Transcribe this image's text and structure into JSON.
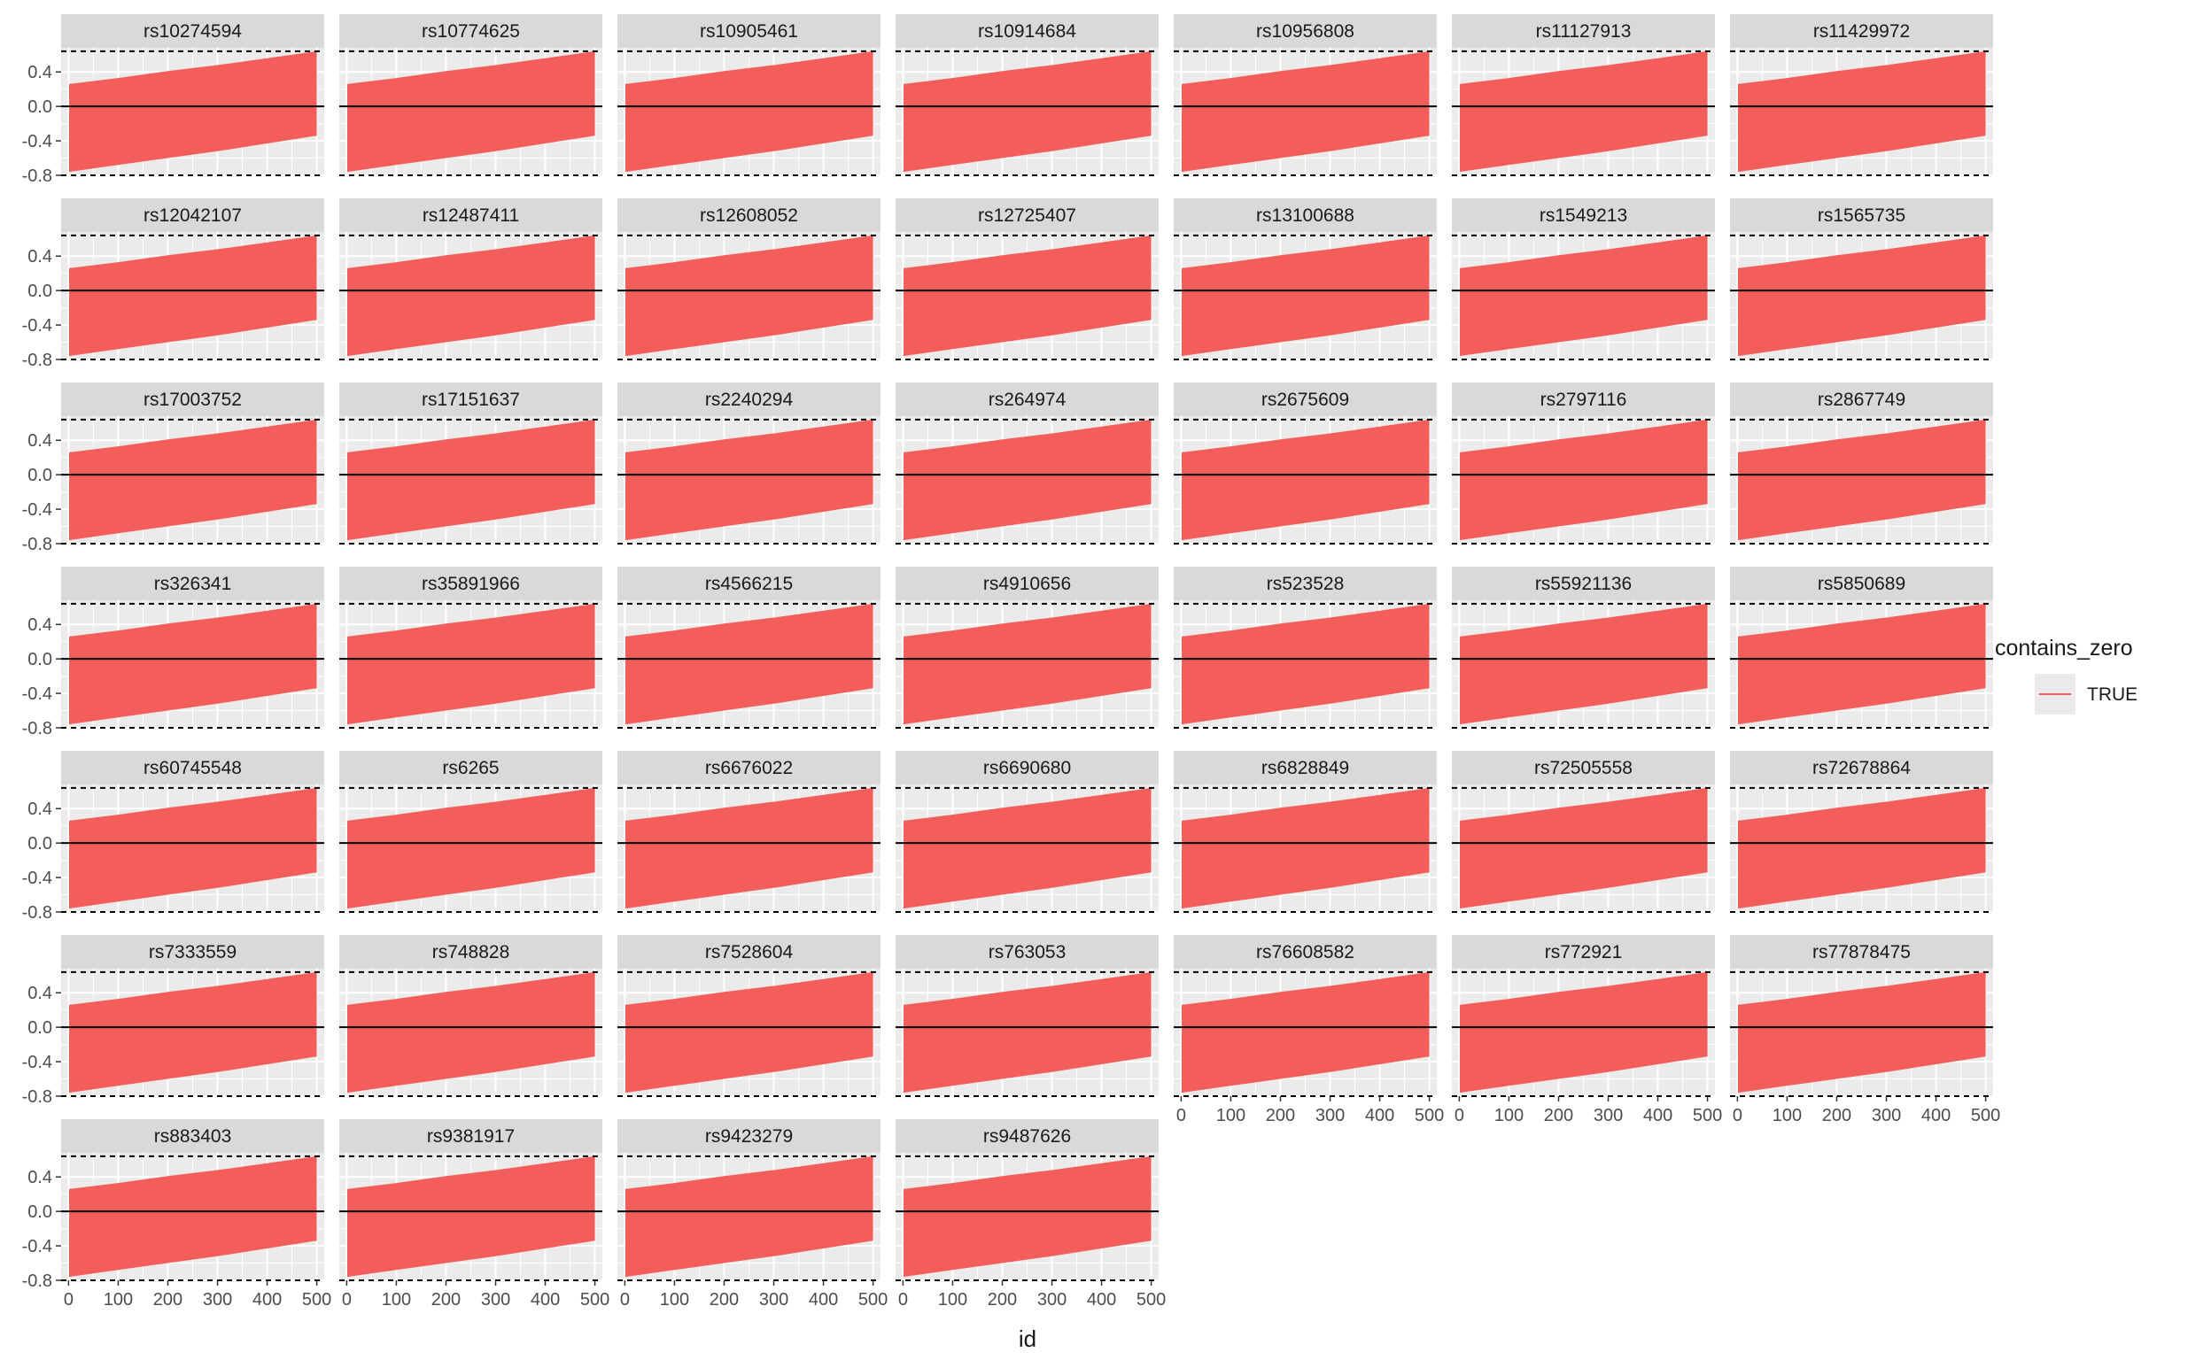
{
  "chart_data": {
    "type": "area",
    "facet_wrap": {
      "ncol": 7,
      "nrow": 7
    },
    "panels": [
      "rs10274594",
      "rs10774625",
      "rs10905461",
      "rs10914684",
      "rs10956808",
      "rs11127913",
      "rs11429972",
      "rs12042107",
      "rs12487411",
      "rs12608052",
      "rs12725407",
      "rs13100688",
      "rs1549213",
      "rs1565735",
      "rs17003752",
      "rs17151637",
      "rs2240294",
      "rs264974",
      "rs2675609",
      "rs2797116",
      "rs2867749",
      "rs326341",
      "rs35891966",
      "rs4566215",
      "rs4910656",
      "rs523528",
      "rs55921136",
      "rs5850689",
      "rs60745548",
      "rs6265",
      "rs6676022",
      "rs6690680",
      "rs6828849",
      "rs72505558",
      "rs72678864",
      "rs7333559",
      "rs748828",
      "rs7528604",
      "rs763053",
      "rs76608582",
      "rs772921",
      "rs77878475",
      "rs883403",
      "rs9381917",
      "rs9423279",
      "rs9487626"
    ],
    "band": {
      "x": [
        1,
        100,
        200,
        300,
        400,
        500
      ],
      "upper": [
        0.26,
        0.33,
        0.41,
        0.48,
        0.56,
        0.64
      ],
      "lower": [
        -0.76,
        -0.68,
        -0.6,
        -0.52,
        -0.43,
        -0.34
      ]
    },
    "hlines": {
      "solid": [
        0.0
      ],
      "dashed": [
        -0.8,
        0.64
      ]
    },
    "xlabel": "id",
    "ylabel": "",
    "xlim": [
      -15,
      515
    ],
    "ylim": [
      -0.8,
      0.68
    ],
    "xticks": [
      "0",
      "100",
      "200",
      "300",
      "400",
      "500"
    ],
    "xtick_values": [
      0,
      100,
      200,
      300,
      400,
      500
    ],
    "yticks": [
      "0.4",
      "0.0",
      "-0.4",
      "-0.8"
    ],
    "ytick_values": [
      0.4,
      0.0,
      -0.4,
      -0.8
    ],
    "grid": true,
    "legend": {
      "title": "contains_zero",
      "entries": [
        "TRUE"
      ],
      "position": "right"
    },
    "colors": {
      "fill": "#F35E5A",
      "panel_bg": "#EBEBEB",
      "strip_bg": "#D9D9D9",
      "grid": "#FFFFFF",
      "text": "#1A1A1A",
      "axis_text": "#4D4D4D"
    }
  }
}
